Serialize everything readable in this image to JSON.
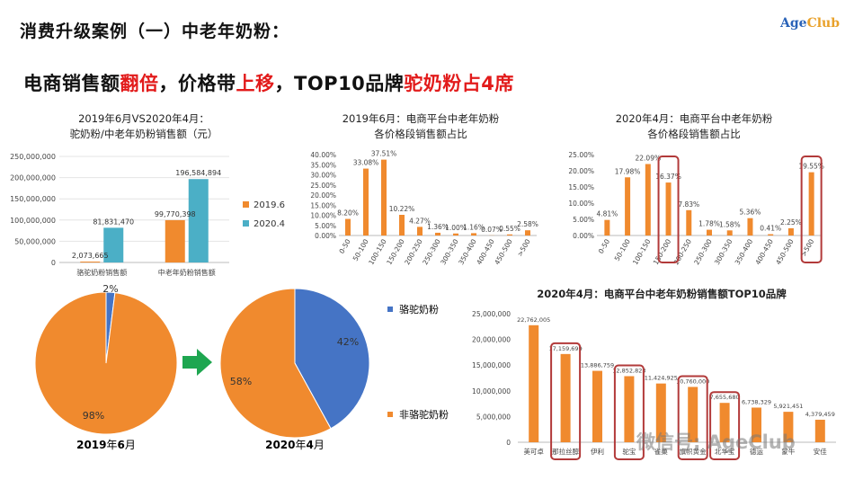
{
  "slide": {
    "title": "消费升级案例（一）中老年奶粉：",
    "logo_age": "Age",
    "logo_club": "Club",
    "headline": [
      {
        "t": "电商销售额",
        "red": false
      },
      {
        "t": "翻倍",
        "red": true
      },
      {
        "t": "，价格带",
        "red": false
      },
      {
        "t": "上移",
        "red": true
      },
      {
        "t": "，TOP10品牌",
        "red": false
      },
      {
        "t": "驼奶粉占4席",
        "red": true
      }
    ],
    "watermark": "微信号: AgeClub"
  },
  "colors": {
    "orange": "#f08a2e",
    "blue": "#4bafc6",
    "pieblue": "#4574c5",
    "highlight": "#b23a3a",
    "arrow": "#1ea650"
  },
  "chart_data": [
    {
      "id": "sales_compare",
      "type": "bar",
      "title_lines": [
        "2019年6月VS2020年4月：",
        "驼奶粉/中老年奶粉销售额（元）"
      ],
      "categories": [
        "骆驼奶粉销售额",
        "中老年奶粉销售额"
      ],
      "series": [
        {
          "name": "2019.6",
          "values": [
            2073665,
            99770398
          ],
          "labels": [
            "2,073,665",
            "99,770,398"
          ],
          "color": "#f08a2e"
        },
        {
          "name": "2020.4",
          "values": [
            81831470,
            196584894
          ],
          "labels": [
            "81,831,470",
            "196,584,894"
          ],
          "color": "#4bafc6"
        }
      ],
      "ylim": [
        0,
        250000000
      ],
      "yticks": [
        0,
        50000000,
        100000000,
        150000000,
        200000000,
        250000000
      ],
      "ytick_labels": [
        "0",
        "50,000,000",
        "100,000,000",
        "150,000,000",
        "200,000,000",
        "250,000,000"
      ],
      "legend_position": "right",
      "grid": true
    },
    {
      "id": "price_2019",
      "type": "bar",
      "title_lines": [
        "2019年6月：电商平台中老年奶粉",
        "各价格段销售额占比"
      ],
      "categories": [
        "0-50",
        "50-100",
        "100-150",
        "150-200",
        "200-250",
        "250-300",
        "300-350",
        "350-400",
        "400-450",
        "450-500",
        ">500"
      ],
      "values": [
        8.2,
        33.08,
        37.51,
        10.22,
        4.27,
        1.36,
        1.0,
        1.16,
        0.07,
        0.55,
        2.58
      ],
      "labels": [
        "8.20%",
        "33.08%",
        "37.51%",
        "10.22%",
        "4.27%",
        "1.36%",
        "1.00%",
        "1.16%",
        "0.07%",
        "0.55%",
        "2.58%"
      ],
      "ylim": [
        0,
        40
      ],
      "yticks": [
        0,
        5,
        10,
        15,
        20,
        25,
        30,
        35,
        40
      ],
      "ytick_labels": [
        "0.00%",
        "5.00%",
        "10.00%",
        "15.00%",
        "20.00%",
        "25.00%",
        "30.00%",
        "35.00%",
        "40.00%"
      ],
      "grid": false
    },
    {
      "id": "price_2020",
      "type": "bar",
      "title_lines": [
        "2020年4月：电商平台中老年奶粉",
        "各价格段销售额占比"
      ],
      "categories": [
        "0-50",
        "50-100",
        "100-150",
        "150-200",
        "200-250",
        "250-300",
        "300-350",
        "350-400",
        "400-450",
        "450-500",
        ">500"
      ],
      "values": [
        4.81,
        17.98,
        22.09,
        16.37,
        7.83,
        1.78,
        1.58,
        5.36,
        0.41,
        2.25,
        19.55
      ],
      "labels": [
        "4.81%",
        "17.98%",
        "22.09%",
        "16.37%",
        "7.83%",
        "1.78%",
        "1.58%",
        "5.36%",
        "0.41%",
        "2.25%",
        "19.55%"
      ],
      "ylim": [
        0,
        25
      ],
      "yticks": [
        0,
        5,
        10,
        15,
        20,
        25
      ],
      "ytick_labels": [
        "0.00%",
        "5.00%",
        "10.00%",
        "15.00%",
        "20.00%",
        "25.00%"
      ],
      "highlighted": [
        "150-200",
        ">500"
      ],
      "grid": false
    },
    {
      "id": "pie_2019",
      "type": "pie",
      "caption_parts": [
        "2019",
        "年",
        "6",
        "月"
      ],
      "slices": [
        {
          "name": "骆驼奶粉",
          "value": 2,
          "label": "2%"
        },
        {
          "name": "非骆驼奶粉",
          "value": 98,
          "label": "98%"
        }
      ]
    },
    {
      "id": "pie_2020",
      "type": "pie",
      "caption_parts": [
        "2020",
        "年",
        "4",
        "月"
      ],
      "slices": [
        {
          "name": "骆驼奶粉",
          "value": 42,
          "label": "42%"
        },
        {
          "name": "非骆驼奶粉",
          "value": 58,
          "label": "58%"
        }
      ],
      "legend": [
        "骆驼奶粉",
        "非骆驼奶粉"
      ]
    },
    {
      "id": "top10",
      "type": "bar",
      "title": "2020年4月：电商平台中老年奶粉销售额TOP10品牌",
      "categories": [
        "美可卓",
        "那拉丝醇",
        "伊利",
        "驼宝",
        "雀巢",
        "旗帜黄金",
        "北华宝",
        "德运",
        "蒙牛",
        "安佳"
      ],
      "values": [
        22762005,
        17159699,
        13886759,
        12852823,
        11424925,
        10760000,
        7655680,
        6738329,
        5921451,
        4379459
      ],
      "labels": [
        "22,762,005",
        "17,159,699",
        "13,886,759",
        "12,852,823",
        "11,424,925",
        "10,760,000",
        "7,655,680",
        "6,738,329",
        "5,921,451",
        "4,379,459"
      ],
      "ylim": [
        0,
        25000000
      ],
      "yticks": [
        0,
        5000000,
        10000000,
        15000000,
        20000000,
        25000000
      ],
      "ytick_labels": [
        "0",
        "5,000,000",
        "10,000,000",
        "15,000,000",
        "20,000,000",
        "25,000,000"
      ],
      "highlighted": [
        "那拉丝醇",
        "驼宝",
        "旗帜黄金",
        "北华宝"
      ],
      "grid": false
    }
  ]
}
